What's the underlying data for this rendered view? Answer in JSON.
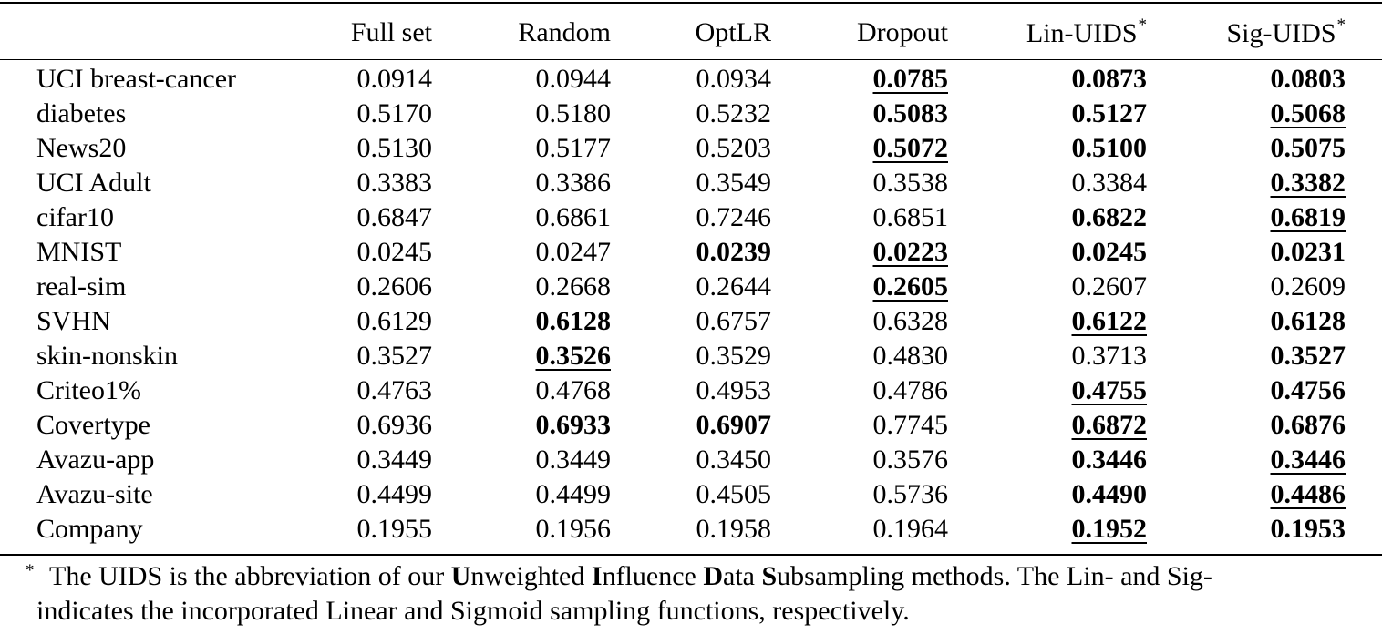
{
  "headers": [
    "",
    "Full set",
    "Random",
    "OptLR",
    "Dropout",
    "Lin-UIDS",
    "Sig-UIDS"
  ],
  "header_marks": [
    "",
    "",
    "",
    "",
    "",
    "*",
    "*"
  ],
  "rows": [
    {
      "dataset": "UCI breast-cancer",
      "cells": [
        {
          "v": "0.0914",
          "b": false,
          "u": false
        },
        {
          "v": "0.0944",
          "b": false,
          "u": false
        },
        {
          "v": "0.0934",
          "b": false,
          "u": false
        },
        {
          "v": "0.0785",
          "b": true,
          "u": true
        },
        {
          "v": "0.0873",
          "b": true,
          "u": false
        },
        {
          "v": "0.0803",
          "b": true,
          "u": false
        }
      ]
    },
    {
      "dataset": "diabetes",
      "cells": [
        {
          "v": "0.5170",
          "b": false,
          "u": false
        },
        {
          "v": "0.5180",
          "b": false,
          "u": false
        },
        {
          "v": "0.5232",
          "b": false,
          "u": false
        },
        {
          "v": "0.5083",
          "b": true,
          "u": false
        },
        {
          "v": "0.5127",
          "b": true,
          "u": false
        },
        {
          "v": "0.5068",
          "b": true,
          "u": true
        }
      ]
    },
    {
      "dataset": "News20",
      "cells": [
        {
          "v": "0.5130",
          "b": false,
          "u": false
        },
        {
          "v": "0.5177",
          "b": false,
          "u": false
        },
        {
          "v": "0.5203",
          "b": false,
          "u": false
        },
        {
          "v": "0.5072",
          "b": true,
          "u": true
        },
        {
          "v": "0.5100",
          "b": true,
          "u": false
        },
        {
          "v": "0.5075",
          "b": true,
          "u": false
        }
      ]
    },
    {
      "dataset": "UCI Adult",
      "cells": [
        {
          "v": "0.3383",
          "b": false,
          "u": false
        },
        {
          "v": "0.3386",
          "b": false,
          "u": false
        },
        {
          "v": "0.3549",
          "b": false,
          "u": false
        },
        {
          "v": "0.3538",
          "b": false,
          "u": false
        },
        {
          "v": "0.3384",
          "b": false,
          "u": false
        },
        {
          "v": "0.3382",
          "b": true,
          "u": true
        }
      ]
    },
    {
      "dataset": "cifar10",
      "cells": [
        {
          "v": "0.6847",
          "b": false,
          "u": false
        },
        {
          "v": "0.6861",
          "b": false,
          "u": false
        },
        {
          "v": "0.7246",
          "b": false,
          "u": false
        },
        {
          "v": "0.6851",
          "b": false,
          "u": false
        },
        {
          "v": "0.6822",
          "b": true,
          "u": false
        },
        {
          "v": "0.6819",
          "b": true,
          "u": true
        }
      ]
    },
    {
      "dataset": "MNIST",
      "cells": [
        {
          "v": "0.0245",
          "b": false,
          "u": false
        },
        {
          "v": "0.0247",
          "b": false,
          "u": false
        },
        {
          "v": "0.0239",
          "b": true,
          "u": false
        },
        {
          "v": "0.0223",
          "b": true,
          "u": true
        },
        {
          "v": "0.0245",
          "b": true,
          "u": false
        },
        {
          "v": "0.0231",
          "b": true,
          "u": false
        }
      ]
    },
    {
      "dataset": "real-sim",
      "cells": [
        {
          "v": "0.2606",
          "b": false,
          "u": false
        },
        {
          "v": "0.2668",
          "b": false,
          "u": false
        },
        {
          "v": "0.2644",
          "b": false,
          "u": false
        },
        {
          "v": "0.2605",
          "b": true,
          "u": true
        },
        {
          "v": "0.2607",
          "b": false,
          "u": false
        },
        {
          "v": "0.2609",
          "b": false,
          "u": false
        }
      ]
    },
    {
      "dataset": "SVHN",
      "cells": [
        {
          "v": "0.6129",
          "b": false,
          "u": false
        },
        {
          "v": "0.6128",
          "b": true,
          "u": false
        },
        {
          "v": "0.6757",
          "b": false,
          "u": false
        },
        {
          "v": "0.6328",
          "b": false,
          "u": false
        },
        {
          "v": "0.6122",
          "b": true,
          "u": true
        },
        {
          "v": "0.6128",
          "b": true,
          "u": false
        }
      ]
    },
    {
      "dataset": "skin-nonskin",
      "cells": [
        {
          "v": "0.3527",
          "b": false,
          "u": false
        },
        {
          "v": "0.3526",
          "b": true,
          "u": true
        },
        {
          "v": "0.3529",
          "b": false,
          "u": false
        },
        {
          "v": "0.4830",
          "b": false,
          "u": false
        },
        {
          "v": "0.3713",
          "b": false,
          "u": false
        },
        {
          "v": "0.3527",
          "b": true,
          "u": false
        }
      ]
    },
    {
      "dataset": "Criteo1%",
      "cells": [
        {
          "v": "0.4763",
          "b": false,
          "u": false
        },
        {
          "v": "0.4768",
          "b": false,
          "u": false
        },
        {
          "v": "0.4953",
          "b": false,
          "u": false
        },
        {
          "v": "0.4786",
          "b": false,
          "u": false
        },
        {
          "v": "0.4755",
          "b": true,
          "u": true
        },
        {
          "v": "0.4756",
          "b": true,
          "u": false
        }
      ]
    },
    {
      "dataset": "Covertype",
      "cells": [
        {
          "v": "0.6936",
          "b": false,
          "u": false
        },
        {
          "v": "0.6933",
          "b": true,
          "u": false
        },
        {
          "v": "0.6907",
          "b": true,
          "u": false
        },
        {
          "v": "0.7745",
          "b": false,
          "u": false
        },
        {
          "v": "0.6872",
          "b": true,
          "u": true
        },
        {
          "v": "0.6876",
          "b": true,
          "u": false
        }
      ]
    },
    {
      "dataset": "Avazu-app",
      "cells": [
        {
          "v": "0.3449",
          "b": false,
          "u": false
        },
        {
          "v": "0.3449",
          "b": false,
          "u": false
        },
        {
          "v": "0.3450",
          "b": false,
          "u": false
        },
        {
          "v": "0.3576",
          "b": false,
          "u": false
        },
        {
          "v": "0.3446",
          "b": true,
          "u": false
        },
        {
          "v": "0.3446",
          "b": true,
          "u": true
        }
      ]
    },
    {
      "dataset": "Avazu-site",
      "cells": [
        {
          "v": "0.4499",
          "b": false,
          "u": false
        },
        {
          "v": "0.4499",
          "b": false,
          "u": false
        },
        {
          "v": "0.4505",
          "b": false,
          "u": false
        },
        {
          "v": "0.5736",
          "b": false,
          "u": false
        },
        {
          "v": "0.4490",
          "b": true,
          "u": false
        },
        {
          "v": "0.4486",
          "b": true,
          "u": true
        }
      ]
    },
    {
      "dataset": "Company",
      "cells": [
        {
          "v": "0.1955",
          "b": false,
          "u": false
        },
        {
          "v": "0.1956",
          "b": false,
          "u": false
        },
        {
          "v": "0.1958",
          "b": false,
          "u": false
        },
        {
          "v": "0.1964",
          "b": false,
          "u": false
        },
        {
          "v": "0.1952",
          "b": true,
          "u": true
        },
        {
          "v": "0.1953",
          "b": true,
          "u": false
        }
      ]
    }
  ],
  "footnote": {
    "mark": "*",
    "line1": [
      {
        "t": "The UIDS is the abbreviation of our ",
        "b": false
      },
      {
        "t": "U",
        "b": true
      },
      {
        "t": "nweighted ",
        "b": false
      },
      {
        "t": "I",
        "b": true
      },
      {
        "t": "nfluence ",
        "b": false
      },
      {
        "t": "D",
        "b": true
      },
      {
        "t": "ata ",
        "b": false
      },
      {
        "t": "S",
        "b": true
      },
      {
        "t": "ubsampling methods. The Lin- and Sig-",
        "b": false
      }
    ],
    "line2": "indicates the incorporated Linear and Sigmoid sampling functions, respectively."
  }
}
